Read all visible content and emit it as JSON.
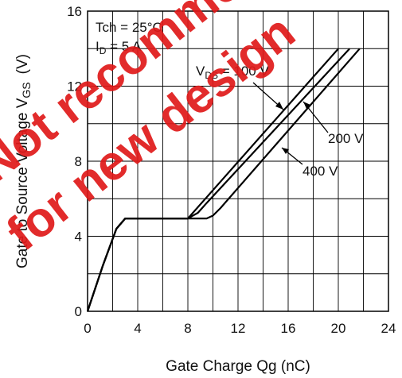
{
  "chart_data": {
    "type": "line",
    "title": "",
    "xlabel": "Gate Charge   Qg  (nC)",
    "ylabel": "Gate to Source Voltage  V",
    "ylabel_sub": "GS",
    "ylabel_unit": "(V)",
    "xlim": [
      0,
      24
    ],
    "ylim": [
      0,
      16
    ],
    "x_ticks": [
      "0",
      "4",
      "8",
      "12",
      "16",
      "20",
      "24"
    ],
    "y_ticks": [
      "0",
      "4",
      "8",
      "12",
      "16"
    ],
    "grid": true,
    "conditions": {
      "line1": "Tch = 25°C",
      "line2_main": "I",
      "line2_sub": "D",
      "line2_rest": " = 5 A"
    },
    "series": [
      {
        "name": "V",
        "name_sub": "DS",
        "name_rest": " = 100 V",
        "x": [
          0,
          1.2,
          2.3,
          3.0,
          8.0,
          20.0
        ],
        "y": [
          0,
          2.4,
          4.4,
          4.95,
          4.95,
          14.0
        ]
      },
      {
        "name": "200 V",
        "x": [
          0,
          1.2,
          2.3,
          3.0,
          8.0,
          8.8,
          9.4,
          20.9
        ],
        "y": [
          0,
          2.4,
          4.4,
          4.95,
          4.95,
          5.25,
          5.7,
          14.0
        ]
      },
      {
        "name": "400 V",
        "x": [
          0,
          1.2,
          2.3,
          3.0,
          9.5,
          10.0,
          10.6,
          21.7
        ],
        "y": [
          0,
          2.4,
          4.4,
          4.95,
          4.95,
          5.1,
          5.5,
          14.0
        ]
      }
    ],
    "watermark": [
      "Not recommended",
      "for new design"
    ]
  }
}
